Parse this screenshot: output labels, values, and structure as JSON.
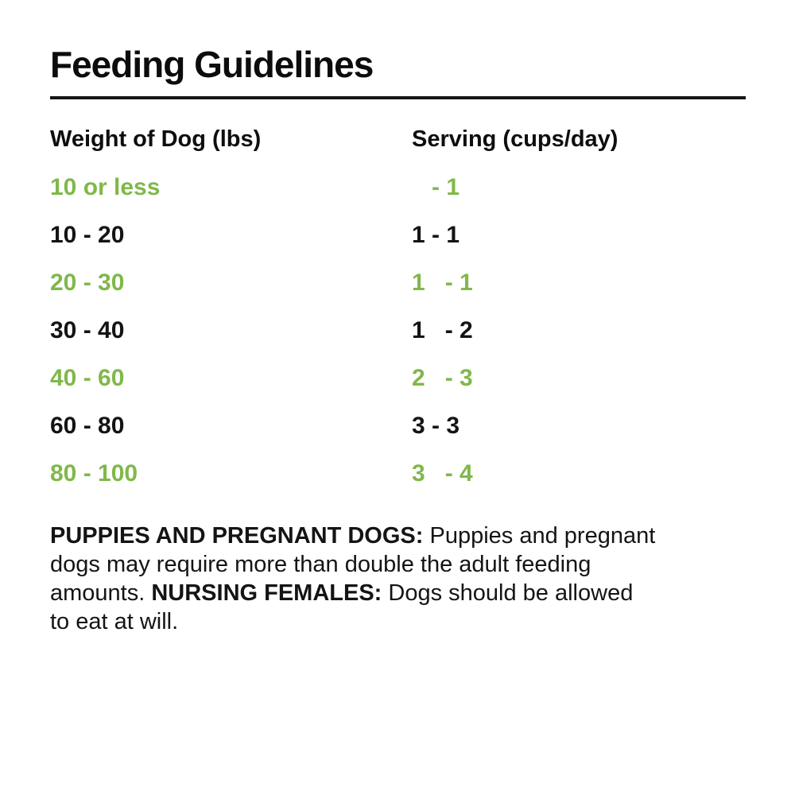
{
  "title": "Feeding Guidelines",
  "colors": {
    "accent_green": "#80b84a",
    "text_black": "#141414"
  },
  "table": {
    "columns": [
      "Weight of Dog (lbs)",
      "Serving (cups/day)"
    ],
    "rows": [
      {
        "weight": "10 or less",
        "serving": "   - 1",
        "highlighted": true
      },
      {
        "weight": "10 - 20",
        "serving": "1 - 1",
        "highlighted": false
      },
      {
        "weight": "20 - 30",
        "serving": "1   - 1",
        "highlighted": true
      },
      {
        "weight": "30 - 40",
        "serving": "1   - 2",
        "highlighted": false
      },
      {
        "weight": "40 - 60",
        "serving": "2   - 3",
        "highlighted": true
      },
      {
        "weight": "60 - 80",
        "serving": "3 - 3",
        "highlighted": false
      },
      {
        "weight": "80 - 100",
        "serving": "3   - 4",
        "highlighted": true
      }
    ]
  },
  "note": {
    "line1_bold": "PUPPIES AND PREGNANT DOGS:",
    "line1_text": " Puppies and pregnant",
    "line2_text": "dogs may require more than double the adult feeding",
    "line3_pre": "amounts. ",
    "line3_bold": "NURSING FEMALES:",
    "line3_text": " Dogs should be allowed",
    "line4_text": "to eat at will."
  }
}
